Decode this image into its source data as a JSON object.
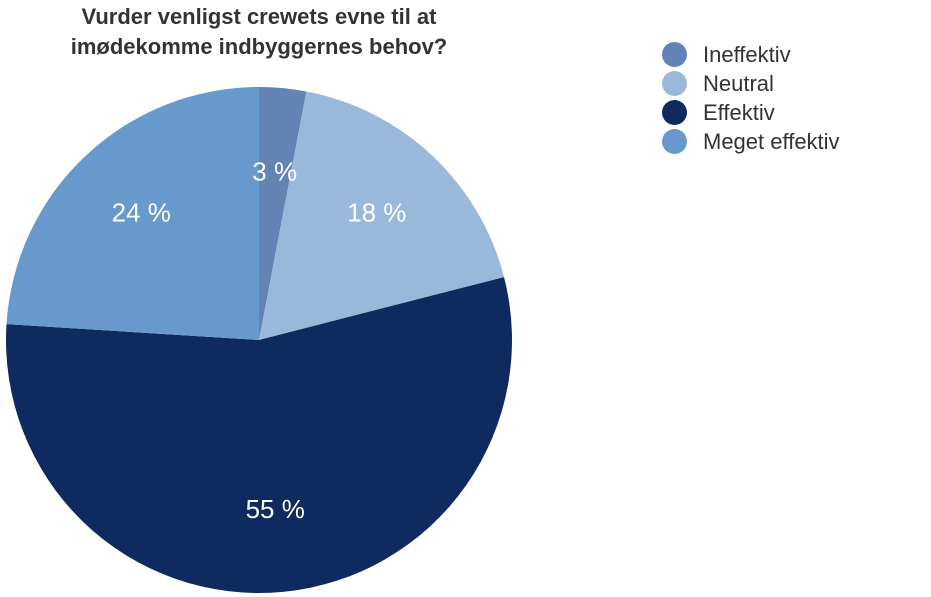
{
  "chart_data": {
    "type": "pie",
    "title_lines": [
      "Vurder venligst crewets evne til at",
      "imødekomme indbyggernes behov?"
    ],
    "categories": [
      "Ineffektiv",
      "Neutral",
      "Effektiv",
      "Meget effektiv"
    ],
    "values": [
      3,
      18,
      55,
      24
    ],
    "value_labels": [
      "3 %",
      "18 %",
      "55 %",
      "24 %"
    ],
    "colors": [
      "#6383b5",
      "#9ab8da",
      "#0e2a5e",
      "#6899cd"
    ],
    "legend_position": "top-right"
  }
}
